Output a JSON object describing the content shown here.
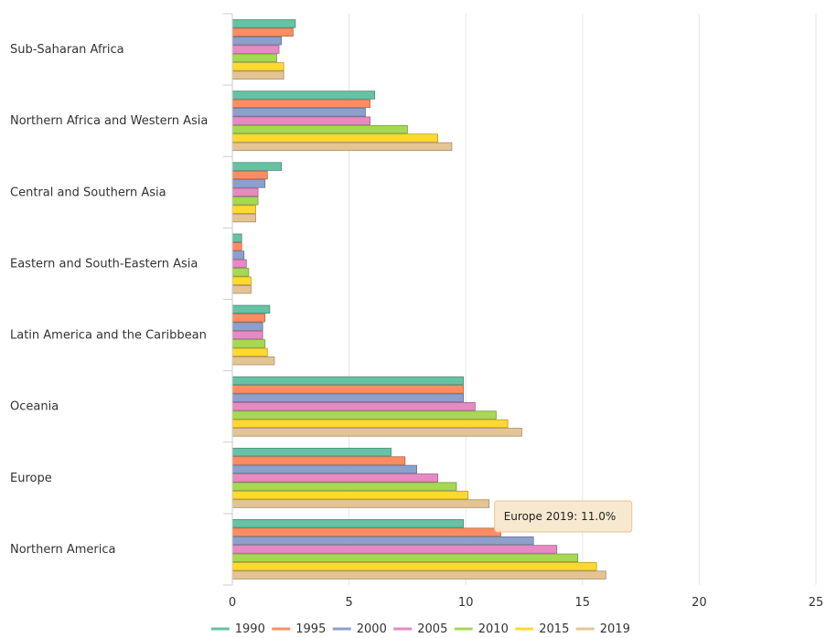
{
  "chart_data": {
    "type": "bar",
    "orientation": "horizontal",
    "categories": [
      "Sub-Saharan Africa",
      "Northern Africa and Western Asia",
      "Central and Southern Asia",
      "Eastern and South-Eastern Asia",
      "Latin America and the Caribbean",
      "Oceania",
      "Europe",
      "Northern America"
    ],
    "series": [
      {
        "name": "1990",
        "color": "#66c2a5",
        "values": [
          2.7,
          6.1,
          2.1,
          0.4,
          1.6,
          9.9,
          6.8,
          9.9
        ]
      },
      {
        "name": "1995",
        "color": "#fc8d62",
        "values": [
          2.6,
          5.9,
          1.5,
          0.4,
          1.4,
          9.9,
          7.4,
          11.5
        ]
      },
      {
        "name": "2000",
        "color": "#8da0cb",
        "values": [
          2.1,
          5.7,
          1.4,
          0.5,
          1.3,
          9.9,
          7.9,
          12.9
        ]
      },
      {
        "name": "2005",
        "color": "#e78ac3",
        "values": [
          2.0,
          5.9,
          1.1,
          0.6,
          1.3,
          10.4,
          8.8,
          13.9
        ]
      },
      {
        "name": "2010",
        "color": "#a6d854",
        "values": [
          1.9,
          7.5,
          1.1,
          0.7,
          1.4,
          11.3,
          9.6,
          14.8
        ]
      },
      {
        "name": "2015",
        "color": "#ffd92f",
        "values": [
          2.2,
          8.8,
          1.0,
          0.8,
          1.5,
          11.8,
          10.1,
          15.6
        ]
      },
      {
        "name": "2019",
        "color": "#e5c494",
        "values": [
          2.2,
          9.4,
          1.0,
          0.8,
          1.8,
          12.4,
          11.0,
          16.0
        ]
      }
    ],
    "xlim": [
      0,
      25
    ],
    "xticks": [
      "0",
      "5",
      "10",
      "15",
      "20",
      "25"
    ],
    "grid": true,
    "legend_position": "bottom",
    "tooltip": {
      "text": "Europe 2019: 11.0%"
    }
  }
}
